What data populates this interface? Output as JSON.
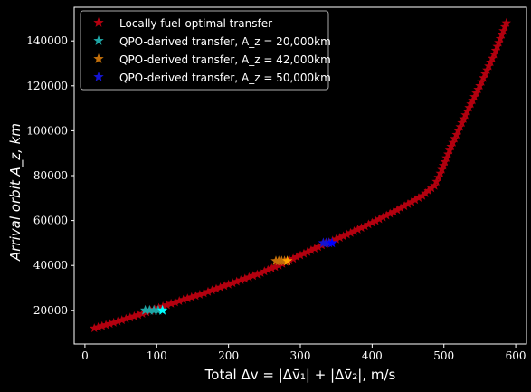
{
  "chart_data": {
    "type": "scatter",
    "title": "",
    "xlabel": "Total Δv = |Δv̄₁| + |Δv̄₂|, m/s",
    "ylabel": "Arrival orbit A_z, km",
    "xlim": [
      -15,
      615
    ],
    "ylim": [
      5000,
      155000
    ],
    "xticks": [
      0,
      100,
      200,
      300,
      400,
      500,
      600
    ],
    "yticks": [
      20000,
      40000,
      60000,
      80000,
      100000,
      120000,
      140000
    ],
    "grid": false,
    "legend_position": "top-left",
    "series": [
      {
        "name": "Locally fuel-optimal transfer",
        "color": "#b3000f",
        "marker": "star",
        "points": [
          [
            13,
            12000
          ],
          [
            40,
            14500
          ],
          [
            80,
            18500
          ],
          [
            120,
            23000
          ],
          [
            160,
            27000
          ],
          [
            200,
            31500
          ],
          [
            240,
            36000
          ],
          [
            270,
            40000
          ],
          [
            300,
            44500
          ],
          [
            330,
            49000
          ],
          [
            360,
            53000
          ],
          [
            400,
            59000
          ],
          [
            440,
            65500
          ],
          [
            470,
            71000
          ],
          [
            487,
            75500
          ],
          [
            495,
            81000
          ],
          [
            510,
            93000
          ],
          [
            530,
            107000
          ],
          [
            550,
            120000
          ],
          [
            570,
            134000
          ],
          [
            587,
            148000
          ]
        ]
      },
      {
        "name": "QPO-derived transfer, A_z = 20,000km",
        "color": "#1fa5a5",
        "marker": "star",
        "points": [
          [
            84,
            20000
          ],
          [
            90,
            20000
          ],
          [
            96,
            20000
          ],
          [
            102,
            20000
          ],
          [
            108,
            20000
          ]
        ]
      },
      {
        "name": "QPO-derived transfer, A_z = 42,000km",
        "color": "#c26f0a",
        "marker": "star",
        "points": [
          [
            266,
            42000
          ],
          [
            270,
            42000
          ],
          [
            274,
            42000
          ],
          [
            278,
            42000
          ],
          [
            282,
            42000
          ]
        ]
      },
      {
        "name": "QPO-derived transfer, A_z = 50,000km",
        "color": "#1414d2",
        "marker": "star",
        "points": [
          [
            332,
            50000
          ],
          [
            336,
            50000
          ],
          [
            340,
            50000
          ],
          [
            344,
            50000
          ]
        ]
      }
    ]
  }
}
